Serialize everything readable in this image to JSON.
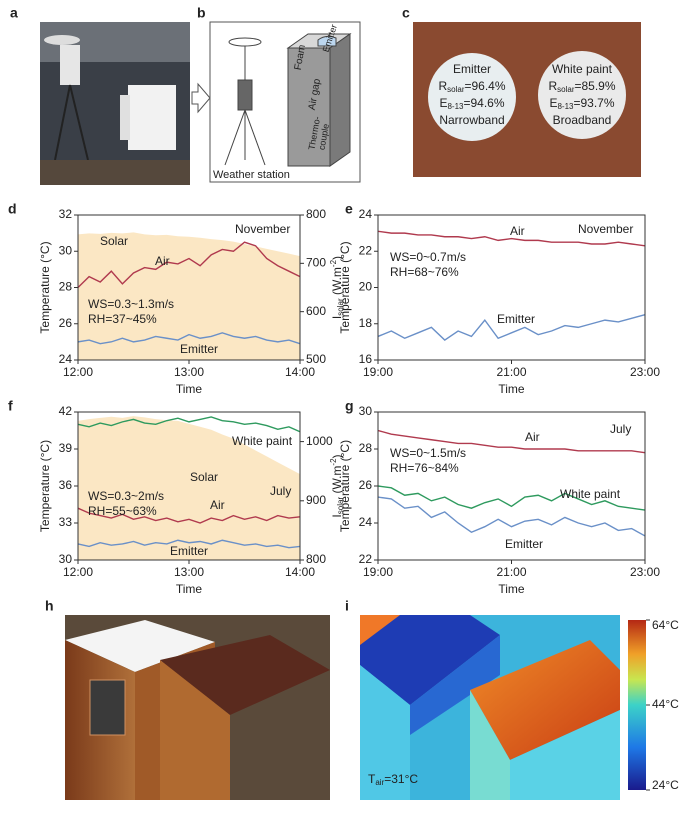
{
  "panels": {
    "a": {
      "label": "a"
    },
    "b": {
      "label": "b",
      "weather_station": "Weather station",
      "foam": "Foam",
      "emitter": "Emitter",
      "air_gap": "Air gap",
      "thermocouple": [
        "Thermo-",
        "couple"
      ]
    },
    "c": {
      "label": "c",
      "samples": [
        {
          "name": "Emitter",
          "r": [
            "R",
            "solar",
            "=96.4%"
          ],
          "e": [
            "E",
            "8-13",
            "=94.6%"
          ],
          "band": "Narrowband"
        },
        {
          "name": "White paint",
          "r": [
            "R",
            "solar",
            "=85.9%"
          ],
          "e": [
            "E",
            "8-13",
            "=93.7%"
          ],
          "band": "Broadband"
        }
      ]
    },
    "h": {
      "label": "h"
    },
    "i": {
      "label": "i",
      "tair": [
        "T",
        "air",
        "=31°C"
      ],
      "colorbar": {
        "lim": [
          24,
          64
        ],
        "ticks": [
          {
            "value": 24,
            "label": "24°C"
          },
          {
            "value": 44,
            "label": "44°C"
          },
          {
            "value": 64,
            "label": "64°C"
          }
        ]
      }
    }
  },
  "charts": [
    {
      "type": "line",
      "label": "d",
      "xlabel": "Time",
      "ylabel": "Temperature (°C)",
      "y2label": [
        "I",
        "solar",
        " (W.m",
        "-2",
        ")"
      ],
      "xlim": [
        12,
        14
      ],
      "xticks": [
        {
          "value": 12,
          "label": "12:00"
        },
        {
          "value": 13,
          "label": "13:00"
        },
        {
          "value": 14,
          "label": "14:00"
        }
      ],
      "ylim": [
        24,
        32
      ],
      "yticks": [
        24,
        26,
        28,
        30,
        32
      ],
      "y2lim": [
        500,
        800
      ],
      "y2ticks": [
        500,
        600,
        700,
        800
      ],
      "annotations": [
        "WS=0.3~1.3m/s",
        "RH=37~45%"
      ],
      "month": "November",
      "x": [
        12,
        12.1,
        12.2,
        12.3,
        12.4,
        12.5,
        12.6,
        12.7,
        12.8,
        12.9,
        13,
        13.1,
        13.2,
        13.3,
        13.4,
        13.5,
        13.6,
        13.7,
        13.8,
        13.9,
        14
      ],
      "series": [
        {
          "name": "Solar",
          "color": "#e8a43c",
          "fill": "#fbe7c4",
          "style": "area",
          "axis": "y2",
          "values": [
            760,
            762,
            761,
            763,
            762,
            764,
            760,
            758,
            759,
            756,
            755,
            753,
            750,
            748,
            745,
            740,
            735,
            730,
            725,
            720,
            715
          ]
        },
        {
          "name": "Air",
          "color": "#b03a4e",
          "style": "line",
          "values": [
            28.0,
            28.6,
            28.3,
            28.9,
            28.2,
            28.8,
            29.1,
            29.0,
            29.4,
            29.3,
            29.6,
            29.2,
            29.8,
            30.1,
            30.0,
            30.5,
            30.3,
            29.6,
            29.2,
            28.9,
            28.6
          ]
        },
        {
          "name": "Emitter",
          "color": "#6a90c8",
          "style": "line",
          "values": [
            25.0,
            25.1,
            24.9,
            25.0,
            25.2,
            25.0,
            25.1,
            25.3,
            25.2,
            25.1,
            25.4,
            25.2,
            25.3,
            25.5,
            25.3,
            25.2,
            25.3,
            25.1,
            25.0,
            25.1,
            24.9
          ]
        }
      ]
    },
    {
      "type": "line",
      "label": "e",
      "xlabel": "Time",
      "ylabel": "Temperature (°C)",
      "xlim": [
        19,
        23
      ],
      "xticks": [
        {
          "value": 19,
          "label": "19:00"
        },
        {
          "value": 21,
          "label": "21:00"
        },
        {
          "value": 23,
          "label": "23:00"
        }
      ],
      "ylim": [
        16,
        24
      ],
      "yticks": [
        16,
        18,
        20,
        22,
        24
      ],
      "annotations": [
        "WS=0~0.7m/s",
        "RH=68~76%"
      ],
      "month": "November",
      "x": [
        19,
        19.2,
        19.4,
        19.6,
        19.8,
        20,
        20.2,
        20.4,
        20.6,
        20.8,
        21,
        21.2,
        21.4,
        21.6,
        21.8,
        22,
        22.2,
        22.4,
        22.6,
        22.8,
        23
      ],
      "series": [
        {
          "name": "Air",
          "color": "#b03a4e",
          "style": "line",
          "values": [
            23.1,
            23.0,
            23.0,
            22.9,
            22.9,
            22.8,
            22.8,
            22.7,
            22.8,
            22.6,
            22.7,
            22.6,
            22.6,
            22.5,
            22.5,
            22.5,
            22.4,
            22.4,
            22.5,
            22.4,
            22.3
          ]
        },
        {
          "name": "Emitter",
          "color": "#6a90c8",
          "style": "line",
          "values": [
            17.3,
            17.6,
            17.2,
            17.5,
            17.8,
            17.1,
            17.6,
            17.3,
            18.2,
            17.2,
            17.5,
            17.8,
            17.4,
            17.6,
            17.9,
            17.8,
            18.0,
            18.2,
            18.1,
            18.3,
            18.5
          ]
        }
      ]
    },
    {
      "type": "line",
      "label": "f",
      "xlabel": "Time",
      "ylabel": "Temperature (°C)",
      "y2label": [
        "I",
        "solar",
        " (W.m",
        "-2",
        ")"
      ],
      "xlim": [
        12,
        14
      ],
      "xticks": [
        {
          "value": 12,
          "label": "12:00"
        },
        {
          "value": 13,
          "label": "13:00"
        },
        {
          "value": 14,
          "label": "14:00"
        }
      ],
      "ylim": [
        30,
        42
      ],
      "yticks": [
        30,
        33,
        36,
        39,
        42
      ],
      "y2lim": [
        800,
        1050
      ],
      "y2ticks": [
        800,
        900,
        1000
      ],
      "annotations": [
        "WS=0.3~2m/s",
        "RH=55~63%"
      ],
      "month": "July",
      "x": [
        12,
        12.1,
        12.2,
        12.3,
        12.4,
        12.5,
        12.6,
        12.7,
        12.8,
        12.9,
        13,
        13.1,
        13.2,
        13.3,
        13.4,
        13.5,
        13.6,
        13.7,
        13.8,
        13.9,
        14
      ],
      "series": [
        {
          "name": "Solar",
          "color": "#e8a43c",
          "fill": "#fbe7c4",
          "style": "area",
          "axis": "y2",
          "values": [
            1035,
            1038,
            1040,
            1042,
            1040,
            1043,
            1041,
            1038,
            1036,
            1035,
            1030,
            1025,
            1020,
            1012,
            1005,
            995,
            985,
            975,
            965,
            955,
            945
          ]
        },
        {
          "name": "White paint",
          "color": "#2e9a5e",
          "style": "line",
          "values": [
            41.0,
            40.8,
            41.1,
            40.9,
            41.2,
            41.4,
            41.1,
            41.0,
            41.3,
            41.5,
            41.2,
            41.4,
            41.6,
            41.3,
            41.2,
            41.0,
            41.1,
            40.9,
            40.6,
            40.8,
            40.4
          ]
        },
        {
          "name": "Air",
          "color": "#b03a4e",
          "style": "line",
          "values": [
            34.2,
            33.8,
            33.6,
            33.4,
            33.7,
            33.3,
            33.5,
            33.2,
            33.4,
            33.1,
            33.3,
            33.0,
            33.4,
            33.2,
            33.6,
            33.3,
            33.5,
            33.2,
            33.6,
            33.4,
            33.5
          ]
        },
        {
          "name": "Emitter",
          "color": "#6a90c8",
          "style": "line",
          "values": [
            31.3,
            31.1,
            31.4,
            31.2,
            31.3,
            31.5,
            31.2,
            31.4,
            31.3,
            31.6,
            31.4,
            31.5,
            31.3,
            31.6,
            31.4,
            31.2,
            31.3,
            31.1,
            31.2,
            31.0,
            31.1
          ]
        }
      ]
    },
    {
      "type": "line",
      "label": "g",
      "xlabel": "Time",
      "ylabel": "Temperature (°C)",
      "xlim": [
        19,
        23
      ],
      "xticks": [
        {
          "value": 19,
          "label": "19:00"
        },
        {
          "value": 21,
          "label": "21:00"
        },
        {
          "value": 23,
          "label": "23:00"
        }
      ],
      "ylim": [
        22,
        30
      ],
      "yticks": [
        22,
        24,
        26,
        28,
        30
      ],
      "annotations": [
        "WS=0~1.5m/s",
        "RH=76~84%"
      ],
      "month": "July",
      "x": [
        19,
        19.2,
        19.4,
        19.6,
        19.8,
        20,
        20.2,
        20.4,
        20.6,
        20.8,
        21,
        21.2,
        21.4,
        21.6,
        21.8,
        22,
        22.2,
        22.4,
        22.6,
        22.8,
        23
      ],
      "series": [
        {
          "name": "Air",
          "color": "#b03a4e",
          "style": "line",
          "values": [
            29.0,
            28.8,
            28.7,
            28.6,
            28.5,
            28.4,
            28.3,
            28.3,
            28.2,
            28.1,
            28.1,
            28.0,
            28.0,
            28.0,
            28.0,
            27.9,
            27.9,
            27.9,
            27.9,
            27.9,
            27.8
          ]
        },
        {
          "name": "White paint",
          "color": "#2e9a5e",
          "style": "line",
          "values": [
            26.0,
            25.9,
            25.5,
            25.6,
            25.2,
            25.4,
            25.0,
            24.8,
            25.1,
            25.3,
            24.9,
            25.4,
            25.5,
            25.2,
            25.6,
            25.3,
            25.0,
            25.2,
            24.9,
            24.8,
            24.7
          ]
        },
        {
          "name": "Emitter",
          "color": "#6a90c8",
          "style": "line",
          "values": [
            25.4,
            25.3,
            24.8,
            24.9,
            24.3,
            24.6,
            24.0,
            23.5,
            23.8,
            24.2,
            23.8,
            24.1,
            24.2,
            23.9,
            24.3,
            24.0,
            23.8,
            24.0,
            23.6,
            23.7,
            23.3
          ]
        }
      ]
    }
  ]
}
